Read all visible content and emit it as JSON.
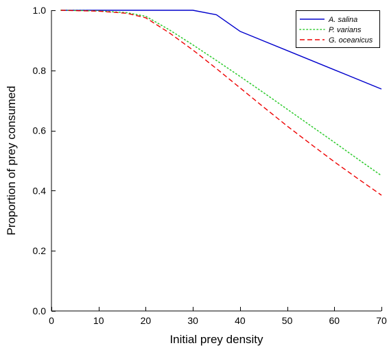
{
  "chart_data": {
    "type": "line",
    "title": "",
    "xlabel": "Initial prey density",
    "ylabel": "Proportion of prey consumed",
    "xlim": [
      0,
      70
    ],
    "ylim": [
      0,
      1
    ],
    "xticks": [
      0,
      10,
      20,
      30,
      40,
      50,
      60,
      70
    ],
    "yticks": [
      0.0,
      0.2,
      0.4,
      0.6,
      0.8,
      1.0
    ],
    "xtick_labels": [
      "0",
      "10",
      "20",
      "30",
      "40",
      "50",
      "60",
      "70"
    ],
    "ytick_labels": [
      "0.0",
      "0.2",
      "0.4",
      "0.6",
      "0.8",
      "1.0"
    ],
    "grid": false,
    "legend_position": "top-right",
    "series": [
      {
        "name": "A. salina",
        "color": "#0000cc",
        "dash": "solid",
        "x": [
          2,
          30,
          35,
          40,
          50,
          60,
          70
        ],
        "y": [
          1.0,
          1.0,
          0.985,
          0.93,
          0.866,
          0.802,
          0.738
        ]
      },
      {
        "name": "P. varians",
        "color": "#33cc33",
        "dash": "dotted",
        "x": [
          2,
          10,
          16,
          20,
          25,
          30,
          35,
          40,
          45,
          50,
          55,
          60,
          65,
          70
        ],
        "y": [
          1.0,
          0.998,
          0.992,
          0.98,
          0.935,
          0.885,
          0.833,
          0.78,
          0.726,
          0.671,
          0.616,
          0.561,
          0.505,
          0.45
        ]
      },
      {
        "name": "G. oceanicus",
        "color": "#ee0000",
        "dash": "dashed",
        "x": [
          2,
          10,
          16,
          20,
          25,
          30,
          35,
          40,
          45,
          50,
          55,
          60,
          65,
          70
        ],
        "y": [
          1.0,
          0.997,
          0.99,
          0.975,
          0.925,
          0.868,
          0.806,
          0.742,
          0.678,
          0.615,
          0.555,
          0.496,
          0.44,
          0.385
        ]
      }
    ]
  }
}
